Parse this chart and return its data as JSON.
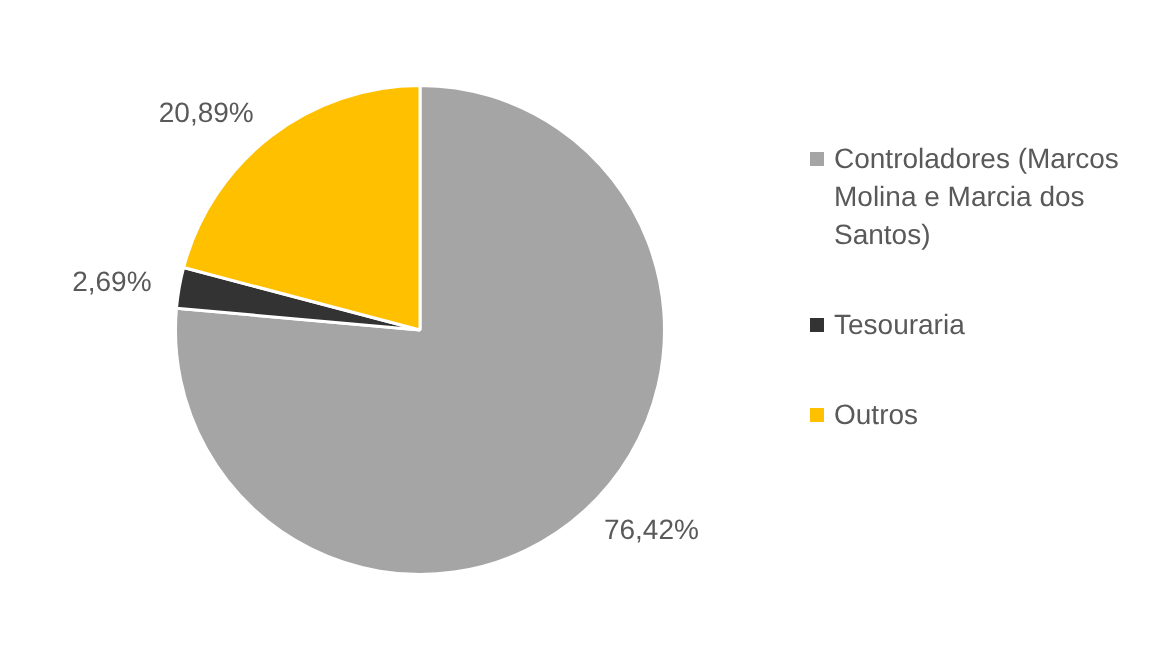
{
  "chart_data": {
    "type": "pie",
    "categories": [
      "Controladores (Marcos Molina e Marcia dos Santos)",
      "Tesouraria",
      "Outros"
    ],
    "values": [
      76.42,
      2.69,
      20.89
    ],
    "colors": [
      "#a5a5a5",
      "#333333",
      "#ffc000"
    ],
    "value_labels": [
      "76,42%",
      "2,69%",
      "20,89%"
    ],
    "legend": "right"
  }
}
